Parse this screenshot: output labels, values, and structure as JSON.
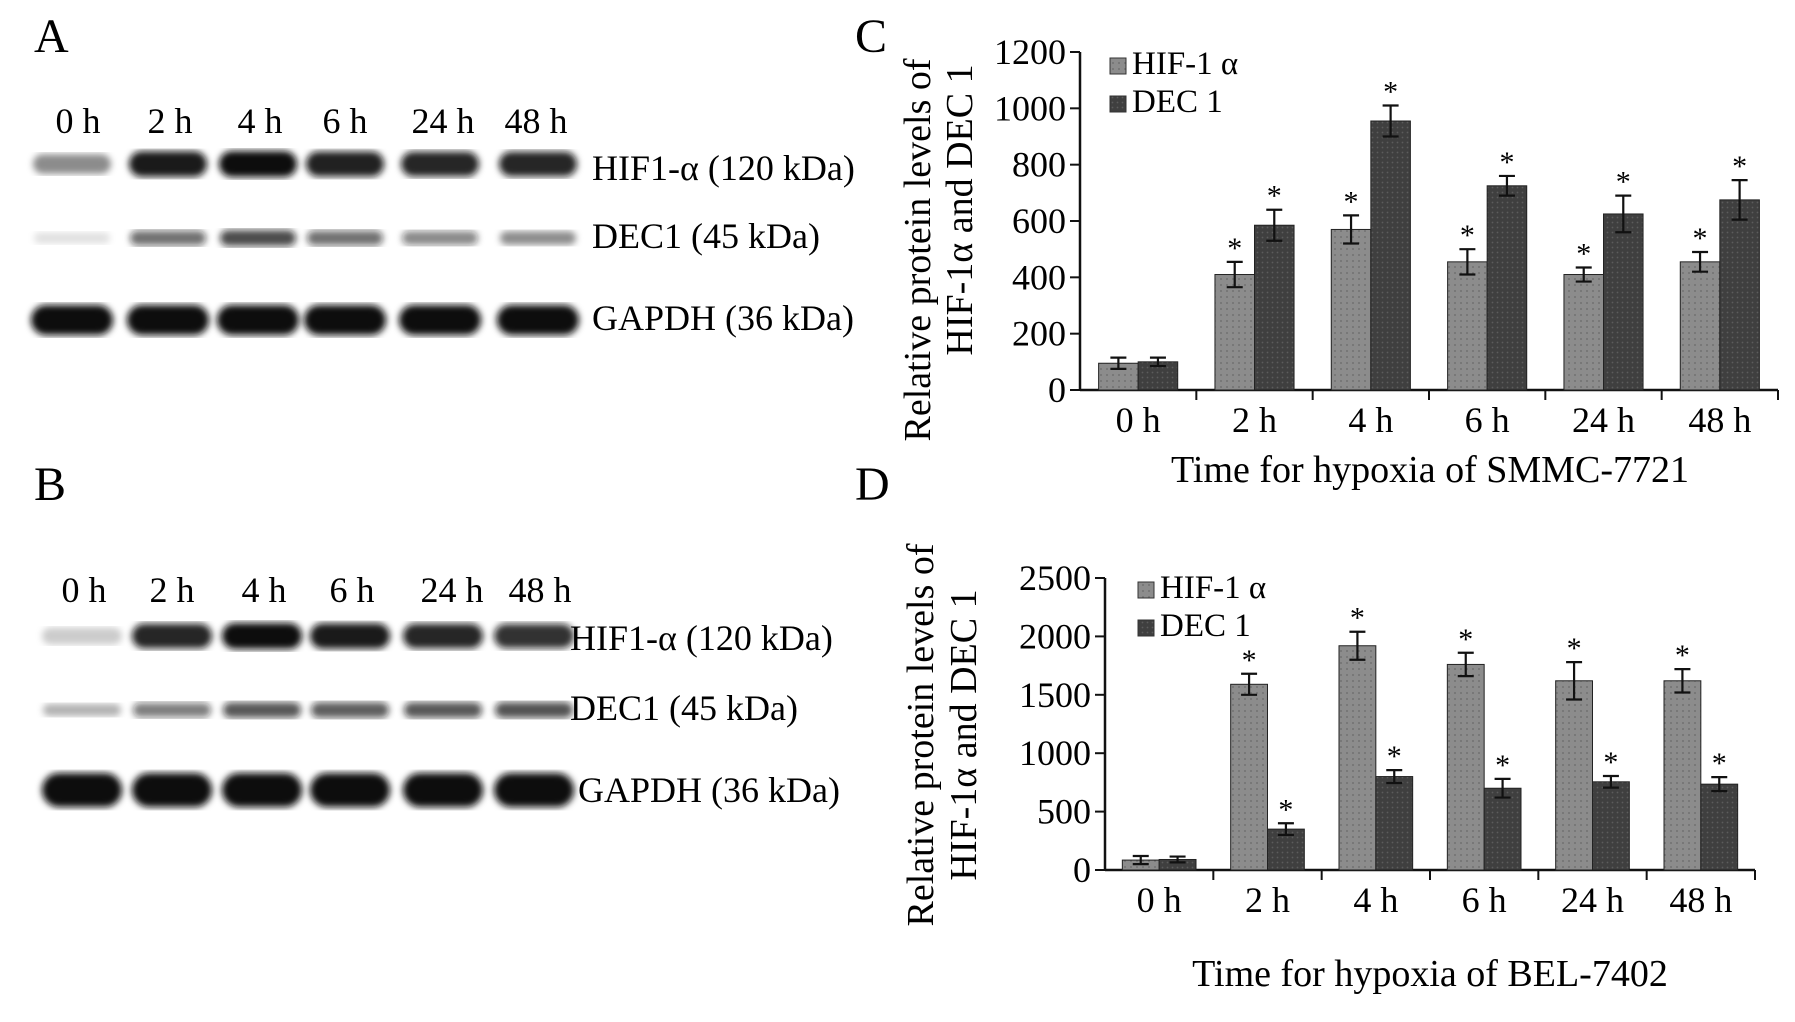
{
  "panels": {
    "A": {
      "letter": "A",
      "lanes": [
        "0 h",
        "2 h",
        "4 h",
        "6 h",
        "24 h",
        "48 h"
      ],
      "labels": [
        "HIF1-α (120 kDa)",
        "DEC1 (45 kDa)",
        "GAPDH (36 kDa)"
      ],
      "intensity": {
        "hif": [
          0.45,
          0.95,
          1.0,
          0.92,
          0.9,
          0.9
        ],
        "dec": [
          0.12,
          0.6,
          0.75,
          0.6,
          0.5,
          0.45
        ],
        "gapdh": [
          1,
          1,
          1,
          1,
          1,
          1
        ]
      }
    },
    "B": {
      "letter": "B",
      "lanes": [
        "0 h",
        "2 h",
        "4 h",
        "6 h",
        "24 h",
        "48 h"
      ],
      "labels": [
        "HIF1-α (120 kDa)",
        "DEC1 (45 kDa)",
        "GAPDH (36 kDa)"
      ],
      "intensity": {
        "hif": [
          0.2,
          0.9,
          1.0,
          0.95,
          0.9,
          0.85
        ],
        "dec": [
          0.3,
          0.55,
          0.7,
          0.68,
          0.7,
          0.72
        ],
        "gapdh": [
          1,
          1,
          1,
          1,
          1,
          1
        ]
      }
    }
  },
  "colors": {
    "hif": "#8c8c8c",
    "dec": "#3f3f3f",
    "axis": "#111111",
    "band": "#0d0d0d"
  },
  "chart_data": [
    {
      "letter": "C",
      "type": "bar",
      "categories": [
        "0 h",
        "2 h",
        "4 h",
        "6 h",
        "24 h",
        "48 h"
      ],
      "series": [
        {
          "name": "HIF-1 α",
          "values": [
            95,
            410,
            570,
            455,
            410,
            455
          ],
          "errors": [
            20,
            45,
            50,
            45,
            25,
            35
          ],
          "significant": [
            false,
            true,
            true,
            true,
            true,
            true
          ]
        },
        {
          "name": "DEC 1",
          "values": [
            100,
            585,
            955,
            725,
            625,
            675
          ],
          "errors": [
            15,
            55,
            55,
            35,
            65,
            70
          ],
          "significant": [
            false,
            true,
            true,
            true,
            true,
            true
          ]
        }
      ],
      "ylim": [
        0,
        1200
      ],
      "yticks": [
        0,
        200,
        400,
        600,
        800,
        1000,
        1200
      ],
      "ylabel": [
        "Relative protein levels of",
        "HIF-1α and DEC 1"
      ],
      "xlabel": "Time for hypoxia of SMMC-7721",
      "legend": "top-left",
      "star": "*"
    },
    {
      "letter": "D",
      "type": "bar",
      "categories": [
        "0 h",
        "2 h",
        "4 h",
        "6 h",
        "24 h",
        "48 h"
      ],
      "series": [
        {
          "name": "HIF-1 α",
          "values": [
            85,
            1590,
            1920,
            1760,
            1620,
            1620
          ],
          "errors": [
            35,
            90,
            120,
            100,
            160,
            100
          ],
          "significant": [
            false,
            true,
            true,
            true,
            true,
            true
          ]
        },
        {
          "name": "DEC 1",
          "values": [
            90,
            350,
            800,
            700,
            755,
            735
          ],
          "errors": [
            25,
            50,
            55,
            80,
            50,
            60
          ],
          "significant": [
            false,
            true,
            true,
            true,
            true,
            true
          ]
        }
      ],
      "ylim": [
        0,
        2500
      ],
      "yticks": [
        0,
        500,
        1000,
        1500,
        2000,
        2500
      ],
      "ylabel": [
        "Relative protein levels of",
        "HIF-1α  and DEC 1"
      ],
      "xlabel": "Time for hypoxia of BEL-7402",
      "legend": "top-left",
      "star": "*"
    }
  ]
}
